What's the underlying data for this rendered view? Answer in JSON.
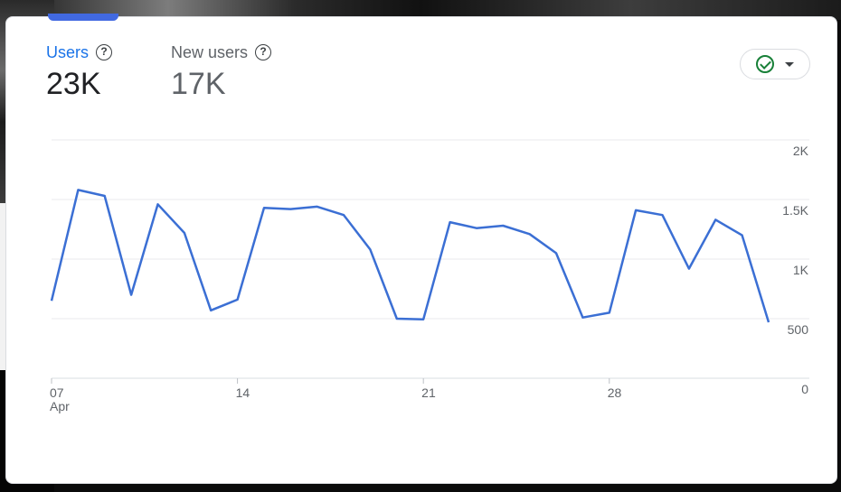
{
  "metrics": [
    {
      "label": "Users",
      "value": "23K",
      "active": true
    },
    {
      "label": "New users",
      "value": "17K",
      "active": false
    }
  ],
  "help_glyph": "?",
  "compare_button": {
    "icon": "check-circle-icon",
    "dropdown_icon": "caret-down-icon"
  },
  "colors": {
    "line": "#3b6fd4",
    "active_metric": "#1a73e8",
    "check": "#188038"
  },
  "chart_data": {
    "type": "line",
    "series": [
      {
        "values": [
          650,
          1580,
          1530,
          700,
          1460,
          1220,
          570,
          660,
          1430,
          1420,
          1440,
          1370,
          1080,
          500,
          495,
          1310,
          1260,
          1280,
          1210,
          1050,
          510,
          550,
          1410,
          1370,
          920,
          1330,
          1200,
          470
        ]
      }
    ],
    "x_start_label": "07 Apr",
    "x_tick_labels": [
      "07",
      "Apr",
      "14",
      "21",
      "28"
    ],
    "y_tick_labels": [
      "2K",
      "1.5K",
      "1K",
      "500",
      "0"
    ],
    "ylim": [
      0,
      2000
    ],
    "grid": true,
    "y_axis_side": "right"
  }
}
